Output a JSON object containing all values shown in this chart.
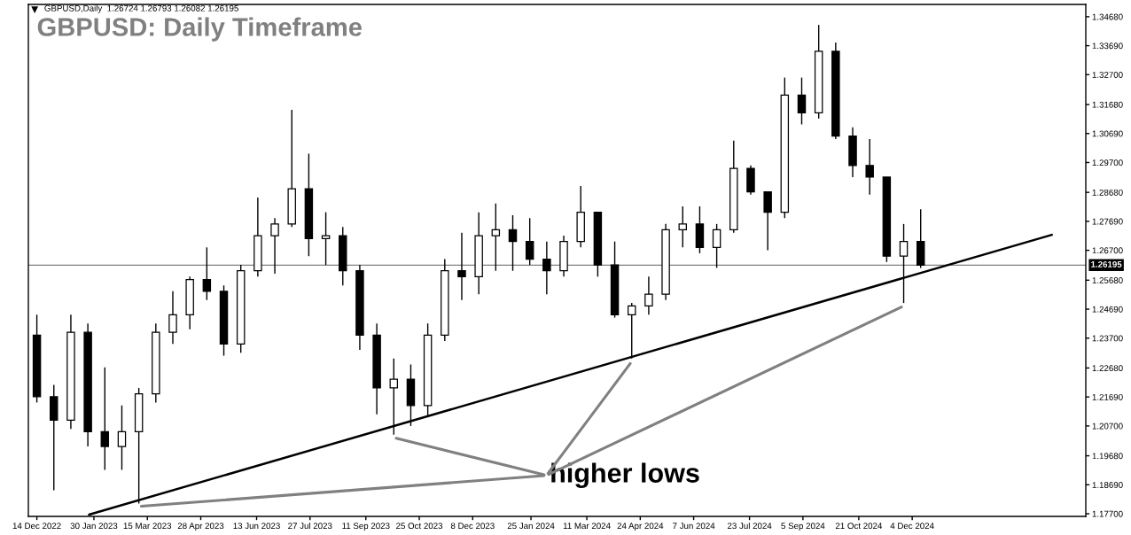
{
  "chart_data": {
    "type": "candlestick",
    "title": "GBPUSD: Daily Timeframe",
    "subtitle": "GBPUSD,Daily  1.26724 1.26793 1.26082 1.26195",
    "x": [
      "2022-12-14",
      "2022-12-28",
      "2023-01-11",
      "2023-01-25",
      "2023-02-08",
      "2023-02-22",
      "2023-03-08",
      "2023-03-22",
      "2023-04-05",
      "2023-04-19",
      "2023-05-03",
      "2023-05-17",
      "2023-05-31",
      "2023-06-14",
      "2023-06-28",
      "2023-07-12",
      "2023-07-26",
      "2023-08-09",
      "2023-08-23",
      "2023-09-06",
      "2023-09-20",
      "2023-10-04",
      "2023-10-18",
      "2023-11-01",
      "2023-11-15",
      "2023-11-29",
      "2023-12-13",
      "2023-12-27",
      "2024-01-10",
      "2024-01-24",
      "2024-02-07",
      "2024-02-21",
      "2024-03-06",
      "2024-03-20",
      "2024-04-03",
      "2024-04-17",
      "2024-05-01",
      "2024-05-15",
      "2024-05-29",
      "2024-06-12",
      "2024-06-26",
      "2024-07-10",
      "2024-07-24",
      "2024-08-07",
      "2024-08-21",
      "2024-09-04",
      "2024-09-18",
      "2024-10-02",
      "2024-10-16",
      "2024-10-30",
      "2024-11-13",
      "2024-11-27",
      "2024-12-11"
    ],
    "ohlc": [
      [
        1.238,
        1.245,
        1.215,
        1.217
      ],
      [
        1.217,
        1.221,
        1.185,
        1.209
      ],
      [
        1.209,
        1.245,
        1.206,
        1.239
      ],
      [
        1.239,
        1.242,
        1.2,
        1.205
      ],
      [
        1.205,
        1.227,
        1.192,
        1.2
      ],
      [
        1.2,
        1.214,
        1.192,
        1.205
      ],
      [
        1.205,
        1.22,
        1.1805,
        1.218
      ],
      [
        1.218,
        1.242,
        1.215,
        1.239
      ],
      [
        1.239,
        1.253,
        1.235,
        1.245
      ],
      [
        1.245,
        1.258,
        1.24,
        1.257
      ],
      [
        1.257,
        1.268,
        1.25,
        1.253
      ],
      [
        1.253,
        1.255,
        1.231,
        1.235
      ],
      [
        1.235,
        1.262,
        1.232,
        1.26
      ],
      [
        1.26,
        1.285,
        1.258,
        1.272
      ],
      [
        1.272,
        1.278,
        1.259,
        1.276
      ],
      [
        1.276,
        1.315,
        1.275,
        1.288
      ],
      [
        1.288,
        1.3,
        1.265,
        1.271
      ],
      [
        1.271,
        1.28,
        1.262,
        1.272
      ],
      [
        1.272,
        1.275,
        1.255,
        1.26
      ],
      [
        1.26,
        1.262,
        1.233,
        1.238
      ],
      [
        1.238,
        1.242,
        1.211,
        1.22
      ],
      [
        1.22,
        1.23,
        1.204,
        1.223
      ],
      [
        1.223,
        1.228,
        1.207,
        1.214
      ],
      [
        1.214,
        1.242,
        1.21,
        1.238
      ],
      [
        1.238,
        1.264,
        1.236,
        1.26
      ],
      [
        1.26,
        1.273,
        1.25,
        1.258
      ],
      [
        1.258,
        1.28,
        1.252,
        1.272
      ],
      [
        1.272,
        1.283,
        1.26,
        1.274
      ],
      [
        1.274,
        1.279,
        1.26,
        1.27
      ],
      [
        1.27,
        1.278,
        1.262,
        1.264
      ],
      [
        1.264,
        1.27,
        1.252,
        1.26
      ],
      [
        1.26,
        1.272,
        1.258,
        1.27
      ],
      [
        1.27,
        1.289,
        1.268,
        1.28
      ],
      [
        1.28,
        1.28,
        1.258,
        1.262
      ],
      [
        1.262,
        1.27,
        1.244,
        1.245
      ],
      [
        1.245,
        1.249,
        1.23,
        1.248
      ],
      [
        1.248,
        1.258,
        1.245,
        1.252
      ],
      [
        1.252,
        1.276,
        1.25,
        1.274
      ],
      [
        1.274,
        1.282,
        1.268,
        1.276
      ],
      [
        1.276,
        1.282,
        1.266,
        1.268
      ],
      [
        1.268,
        1.276,
        1.261,
        1.274
      ],
      [
        1.274,
        1.3045,
        1.273,
        1.295
      ],
      [
        1.295,
        1.296,
        1.286,
        1.287
      ],
      [
        1.287,
        1.287,
        1.267,
        1.28
      ],
      [
        1.28,
        1.326,
        1.278,
        1.32
      ],
      [
        1.32,
        1.326,
        1.31,
        1.314
      ],
      [
        1.314,
        1.344,
        1.312,
        1.335
      ],
      [
        1.335,
        1.338,
        1.305,
        1.306
      ],
      [
        1.306,
        1.309,
        1.292,
        1.296
      ],
      [
        1.296,
        1.305,
        1.286,
        1.292
      ],
      [
        1.292,
        1.292,
        1.263,
        1.265
      ],
      [
        1.265,
        1.276,
        1.249,
        1.27
      ],
      [
        1.27,
        1.281,
        1.261,
        1.26195
      ]
    ],
    "colors": [
      "#000000",
      "#000000",
      "#000000",
      "#000000",
      "#000000",
      "#000000",
      "#000000",
      "#000000",
      "#000000",
      "#000000",
      "#000000",
      "#000000",
      "#000000",
      "#000000",
      "#000000",
      "#000000",
      "#000000",
      "#000000",
      "#000000",
      "#000000",
      "#000000",
      "#000000",
      "#000000",
      "#000000",
      "#000000",
      "#000000",
      "#000000",
      "#000000",
      "#000000",
      "#000000",
      "#000000",
      "#000000",
      "#000000",
      "#000000",
      "#000000",
      "#000000",
      "#000000",
      "#000000",
      "#000000",
      "#000000",
      "#000000",
      "#000000",
      "#000000",
      "#000000",
      "#000000",
      "#000000",
      "#000000",
      "#000000",
      "#000000",
      "#000000",
      "#000000",
      "#000000",
      "#000000"
    ],
    "series": [
      {
        "type": "line",
        "x": [
          "2023-01-26",
          "2025-03-29"
        ],
        "values": [
          1.1767,
          1.2723
        ],
        "color": "#000000"
      }
    ],
    "ref_lines": [
      {
        "axis": "y",
        "value": 1.26195,
        "label": "1.26195",
        "color": "#808080"
      }
    ],
    "annotations": [
      "higher lows"
    ],
    "xlim": [
      "2022-12-07",
      "2025-04-26"
    ],
    "xticks": [
      {
        "value": "2022-12-14",
        "label": "14 Dec 2022"
      },
      {
        "value": "2023-01-30",
        "label": "30 Jan 2023"
      },
      {
        "value": "2023-03-15",
        "label": "15 Mar 2023"
      },
      {
        "value": "2023-04-28",
        "label": "28 Apr 2023"
      },
      {
        "value": "2023-06-13",
        "label": "13 Jun 2023"
      },
      {
        "value": "2023-07-27",
        "label": "27 Jul 2023"
      },
      {
        "value": "2023-09-11",
        "label": "11 Sep 2023"
      },
      {
        "value": "2023-10-25",
        "label": "25 Oct 2023"
      },
      {
        "value": "2023-12-08",
        "label": "8 Dec 2023"
      },
      {
        "value": "2024-01-25",
        "label": "25 Jan 2024"
      },
      {
        "value": "2024-03-11",
        "label": "11 Mar 2024"
      },
      {
        "value": "2024-04-24",
        "label": "24 Apr 2024"
      },
      {
        "value": "2024-06-07",
        "label": "7 Jun 2024"
      },
      {
        "value": "2024-07-23",
        "label": "23 Jul 2024"
      },
      {
        "value": "2024-09-05",
        "label": "5 Sep 2024"
      },
      {
        "value": "2024-10-21",
        "label": "21 Oct 2024"
      },
      {
        "value": "2024-12-04",
        "label": "4 Dec 2024"
      }
    ],
    "ylim": [
      1.1761,
      1.351
    ],
    "yticks": [
      {
        "value": 1.177,
        "label": "1.17700"
      },
      {
        "value": 1.1869,
        "label": "1.18690"
      },
      {
        "value": 1.1968,
        "label": "1.19680"
      },
      {
        "value": 1.207,
        "label": "1.20700"
      },
      {
        "value": 1.2169,
        "label": "1.21690"
      },
      {
        "value": 1.2268,
        "label": "1.22680"
      },
      {
        "value": 1.237,
        "label": "1.23700"
      },
      {
        "value": 1.2469,
        "label": "1.24690"
      },
      {
        "value": 1.2568,
        "label": "1.25680"
      },
      {
        "value": 1.267,
        "label": "1.26700"
      },
      {
        "value": 1.2769,
        "label": "1.27690"
      },
      {
        "value": 1.2868,
        "label": "1.28680"
      },
      {
        "value": 1.297,
        "label": "1.29700"
      },
      {
        "value": 1.3069,
        "label": "1.30690"
      },
      {
        "value": 1.3168,
        "label": "1.31680"
      },
      {
        "value": 1.327,
        "label": "1.32700"
      },
      {
        "value": 1.3369,
        "label": "1.33690"
      },
      {
        "value": 1.3468,
        "label": "1.34680"
      }
    ],
    "grid": false,
    "legend": false
  }
}
